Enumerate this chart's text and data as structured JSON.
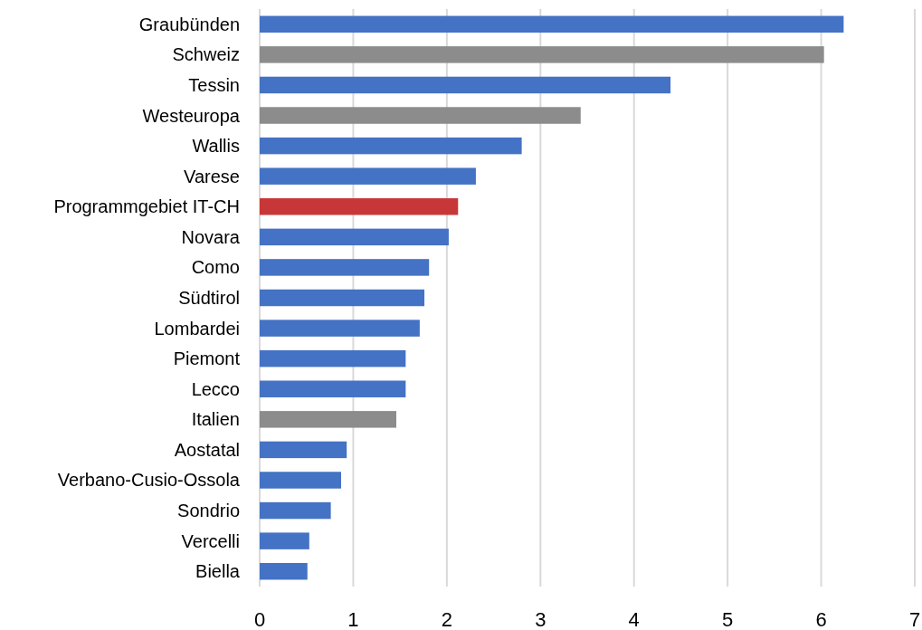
{
  "chart_data": {
    "type": "bar",
    "orientation": "horizontal",
    "categories": [
      "Graubünden",
      "Schweiz",
      "Tessin",
      "Westeuropa",
      "Wallis",
      "Varese",
      "Programmgebiet IT-CH",
      "Novara",
      "Como",
      "Südtirol",
      "Lombardei",
      "Piemont",
      "Lecco",
      "Italien",
      "Aostatal",
      "Verbano-Cusio-Ossola",
      "Sondrio",
      "Vercelli",
      "Biella"
    ],
    "values": [
      6.24,
      6.03,
      4.39,
      3.43,
      2.8,
      2.31,
      2.12,
      2.02,
      1.81,
      1.76,
      1.71,
      1.56,
      1.56,
      1.46,
      0.93,
      0.87,
      0.76,
      0.53,
      0.51
    ],
    "colors": [
      "#4472c4",
      "#8c8c8c",
      "#4472c4",
      "#8c8c8c",
      "#4472c4",
      "#4472c4",
      "#c83737",
      "#4472c4",
      "#4472c4",
      "#4472c4",
      "#4472c4",
      "#4472c4",
      "#4472c4",
      "#8c8c8c",
      "#4472c4",
      "#4472c4",
      "#4472c4",
      "#4472c4",
      "#4472c4"
    ],
    "xlim": [
      0,
      7
    ],
    "xticks": [
      0,
      1,
      2,
      3,
      4,
      5,
      6,
      7
    ],
    "grid": "x"
  }
}
